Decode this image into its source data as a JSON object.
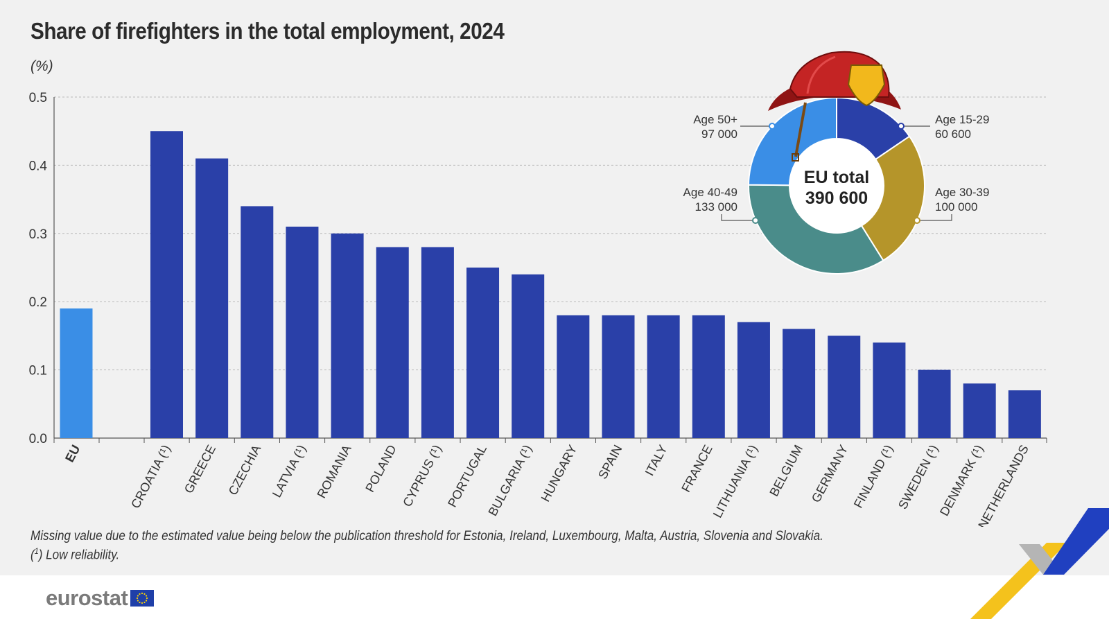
{
  "title": "Share of firefighters in the total employment, 2024",
  "unit": "(%)",
  "chart_data": [
    {
      "type": "bar",
      "title": "Share of firefighters in the total employment, 2024",
      "ylabel": "(%)",
      "ylim": [
        0,
        0.5
      ],
      "yticks": [
        "0.0",
        "0.1",
        "0.2",
        "0.3",
        "0.4",
        "0.5"
      ],
      "grid": true,
      "categories": [
        "EU",
        "CROATIA (¹)",
        "GREECE",
        "CZECHIA",
        "LATVIA (¹)",
        "ROMANIA",
        "POLAND",
        "CYPRUS (¹)",
        "PORTUGAL",
        "BULGARIA (¹)",
        "HUNGARY",
        "SPAIN",
        "ITALY",
        "FRANCE",
        "LITHUANIA (¹)",
        "BELGIUM",
        "GERMANY",
        "FINLAND (¹)",
        "SWEDEN (¹)",
        "DENMARK (¹)",
        "NETHERLANDS"
      ],
      "values": [
        0.19,
        0.45,
        0.41,
        0.34,
        0.31,
        0.3,
        0.28,
        0.28,
        0.25,
        0.24,
        0.18,
        0.18,
        0.18,
        0.18,
        0.17,
        0.16,
        0.15,
        0.14,
        0.1,
        0.08,
        0.07
      ],
      "colors": {
        "eu": "#3a8ee6",
        "country": "#2a40a8"
      }
    },
    {
      "type": "pie",
      "title": "EU total",
      "total_label": "EU total",
      "total_value": "390 600",
      "slices": [
        {
          "label": "Age 15-29",
          "value_label": "60 600",
          "value": 60600,
          "color": "#2a40a8"
        },
        {
          "label": "Age 30-39",
          "value_label": "100 000",
          "value": 100000,
          "color": "#b5952a"
        },
        {
          "label": "Age 40-49",
          "value_label": "133 000",
          "value": 133000,
          "color": "#4a8c8a"
        },
        {
          "label": "Age 50+",
          "value_label": "97 000",
          "value": 97000,
          "color": "#3a8ee6"
        }
      ]
    }
  ],
  "notes": {
    "missing": "Missing value due to the estimated value being below the publication threshold for Estonia, Ireland, Luxembourg, Malta, Austria, Slovenia and Slovakia.",
    "marker": "1",
    "reliability": " Low reliability."
  },
  "brand": {
    "name": "eurostat",
    "flag_icon": "eu-flag-icon"
  }
}
